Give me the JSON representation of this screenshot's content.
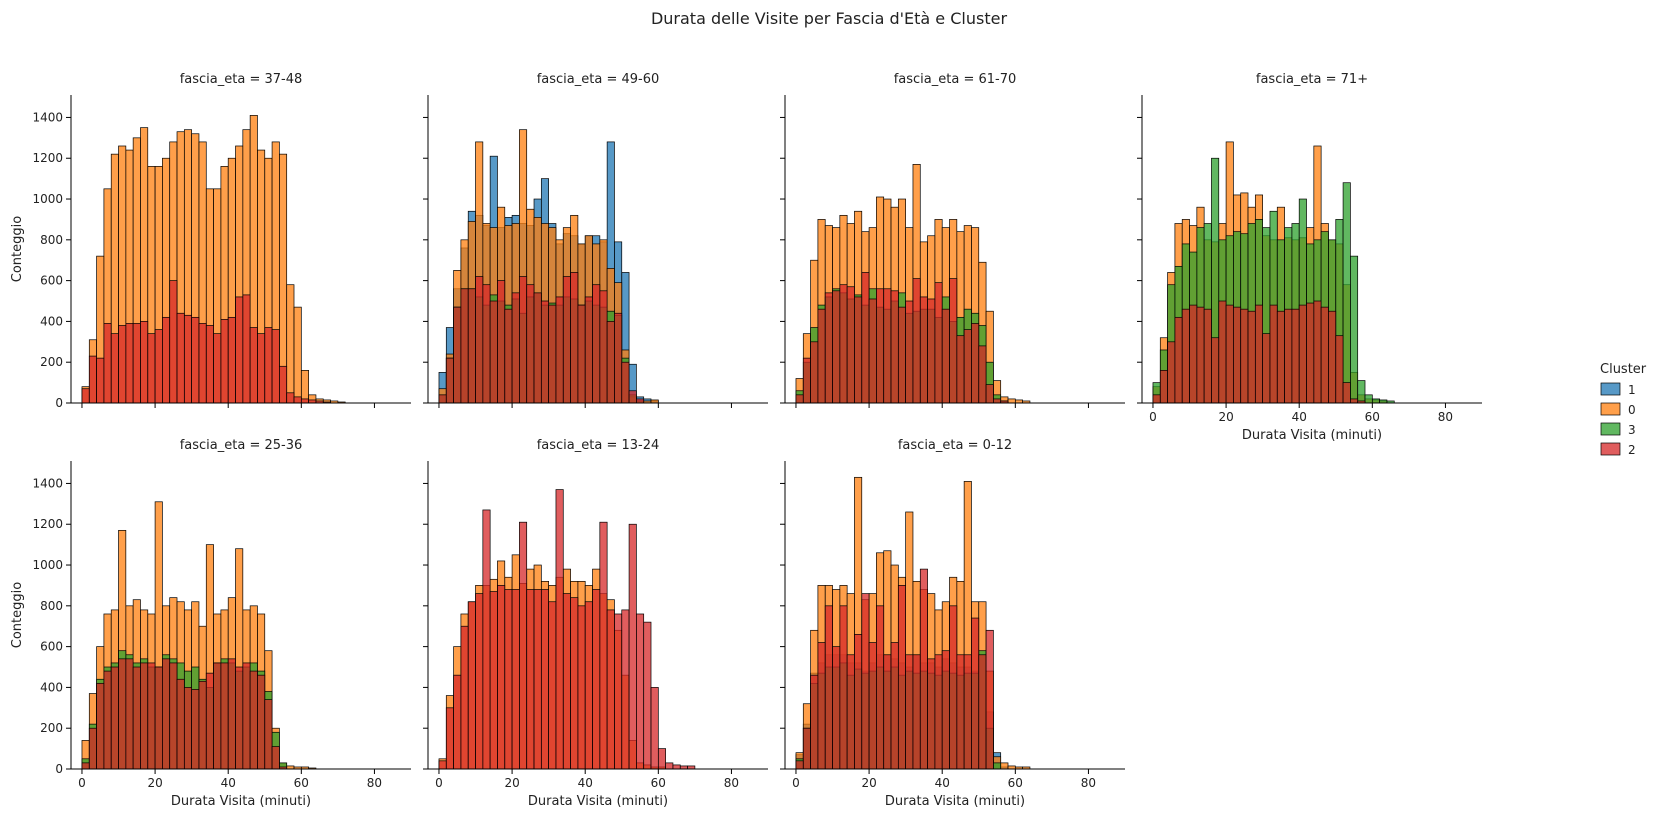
{
  "title": "Durata delle Visite per Fascia d'Età e Cluster",
  "legend": {
    "title": "Cluster",
    "placement": "right-center",
    "entries": [
      {
        "label": "1",
        "color": "#1f77b4"
      },
      {
        "label": "0",
        "color": "#ff7f0e"
      },
      {
        "label": "3",
        "color": "#2ca02c"
      },
      {
        "label": "2",
        "color": "#d62728"
      }
    ]
  },
  "chart_data": {
    "type": "bar",
    "kind": "faceted-overlaid-histogram",
    "xlabel": "Durata Visita (minuti)",
    "ylabel": "Conteggio",
    "xlim": [
      -3,
      90
    ],
    "ylim": [
      0,
      1510
    ],
    "xticks": [
      0,
      20,
      40,
      60,
      80
    ],
    "yticks": [
      0,
      200,
      400,
      600,
      800,
      1000,
      1200,
      1400
    ],
    "bin_width": 2,
    "bin_start": 0,
    "grid": false,
    "panels": [
      {
        "title": "fascia_eta = 37-48",
        "series": [
          {
            "name": "0",
            "values": [
              80,
              310,
              720,
              1050,
              1220,
              1260,
              1240,
              1300,
              1350,
              1160,
              1160,
              1200,
              1280,
              1330,
              1340,
              1320,
              1280,
              1050,
              1050,
              1160,
              1200,
              1260,
              1340,
              1410,
              1240,
              1200,
              1280,
              1220,
              580,
              470,
              160,
              40,
              20,
              15,
              10,
              5
            ]
          },
          {
            "name": "2",
            "values": [
              70,
              230,
              220,
              390,
              340,
              380,
              390,
              390,
              400,
              340,
              360,
              420,
              600,
              440,
              430,
              420,
              390,
              380,
              340,
              410,
              420,
              520,
              530,
              370,
              340,
              370,
              360,
              180,
              50,
              30,
              20,
              15,
              10,
              5
            ]
          }
        ]
      },
      {
        "title": "fascia_eta = 49-60",
        "series": [
          {
            "name": "1",
            "values": [
              150,
              370,
              560,
              760,
              940,
              920,
              870,
              1210,
              860,
              910,
              920,
              880,
              870,
              1000,
              1100,
              880,
              780,
              830,
              820,
              780,
              820,
              820,
              790,
              1280,
              790,
              640,
              190,
              30,
              20,
              10
            ]
          },
          {
            "name": "0",
            "values": [
              70,
              240,
              650,
              800,
              890,
              1280,
              880,
              860,
              960,
              870,
              880,
              1340,
              950,
              910,
              880,
              860,
              800,
              860,
              920,
              780,
              820,
              780,
              800,
              660,
              590,
              260,
              30,
              10,
              10,
              15
            ]
          },
          {
            "name": "3",
            "values": [
              40,
              220,
              470,
              560,
              560,
              520,
              480,
              530,
              500,
              480,
              510,
              440,
              520,
              540,
              480,
              490,
              480,
              520,
              510,
              480,
              500,
              480,
              470,
              450,
              430,
              220,
              40,
              10
            ]
          },
          {
            "name": "2",
            "values": [
              40,
              220,
              470,
              560,
              560,
              620,
              580,
              500,
              600,
              460,
              540,
              620,
              580,
              540,
              500,
              480,
              520,
              620,
              640,
              480,
              520,
              580,
              550,
              400,
              440,
              200,
              60,
              20
            ]
          }
        ]
      },
      {
        "title": "fascia_eta = 61-70",
        "series": [
          {
            "name": "0",
            "values": [
              120,
              340,
              700,
              900,
              870,
              860,
              920,
              880,
              940,
              840,
              860,
              1010,
              1000,
              960,
              1000,
              860,
              1170,
              790,
              820,
              900,
              860,
              900,
              840,
              870,
              860,
              690,
              450,
              110,
              30,
              20,
              15,
              10
            ]
          },
          {
            "name": "3",
            "values": [
              60,
              200,
              370,
              480,
              520,
              560,
              540,
              510,
              530,
              480,
              560,
              470,
              460,
              500,
              540,
              440,
              450,
              460,
              460,
              420,
              520,
              400,
              420,
              460,
              440,
              380,
              200,
              40,
              10
            ]
          },
          {
            "name": "2",
            "values": [
              40,
              220,
              300,
              460,
              540,
              550,
              580,
              570,
              520,
              640,
              510,
              560,
              560,
              550,
              470,
              500,
              610,
              520,
              510,
              590,
              460,
              610,
              330,
              360,
              390,
              280,
              90,
              20,
              10
            ]
          }
        ]
      },
      {
        "title": "fascia_eta = 71+",
        "series": [
          {
            "name": "0",
            "values": [
              80,
              320,
              640,
              880,
              900,
              870,
              960,
              800,
              790,
              880,
              1280,
              1020,
              1030,
              960,
              1020,
              820,
              800,
              960,
              810,
              800,
              810,
              860,
              1260,
              880,
              800,
              780,
              580,
              150,
              40,
              20,
              15,
              10
            ]
          },
          {
            "name": "3",
            "values": [
              100,
              260,
              580,
              670,
              780,
              740,
              860,
              880,
              1200,
              800,
              820,
              840,
              830,
              880,
              900,
              860,
              940,
              800,
              860,
              880,
              1000,
              780,
              800,
              840,
              800,
              900,
              1080,
              720,
              110,
              40,
              20,
              15,
              10
            ]
          },
          {
            "name": "2",
            "values": [
              40,
              160,
              300,
              420,
              460,
              480,
              470,
              460,
              320,
              500,
              480,
              470,
              460,
              450,
              480,
              340,
              480,
              450,
              460,
              460,
              480,
              490,
              500,
              470,
              450,
              330,
              100,
              20,
              10
            ]
          }
        ]
      },
      {
        "title": "fascia_eta = 25-36",
        "series": [
          {
            "name": "0",
            "values": [
              140,
              370,
              600,
              760,
              780,
              1170,
              800,
              830,
              780,
              760,
              1310,
              800,
              840,
              820,
              780,
              820,
              700,
              1100,
              760,
              780,
              840,
              1080,
              780,
              800,
              760,
              580,
              200,
              30,
              15,
              10,
              10,
              5
            ]
          },
          {
            "name": "3",
            "values": [
              50,
              220,
              440,
              500,
              520,
              580,
              560,
              520,
              540,
              500,
              500,
              560,
              540,
              520,
              480,
              500,
              440,
              400,
              520,
              540,
              520,
              480,
              500,
              520,
              480,
              380,
              180,
              30
            ]
          },
          {
            "name": "2",
            "values": [
              30,
              200,
              420,
              480,
              500,
              540,
              540,
              500,
              520,
              520,
              500,
              540,
              520,
              440,
              400,
              390,
              430,
              470,
              520,
              520,
              540,
              500,
              520,
              480,
              460,
              340,
              110,
              10
            ]
          }
        ]
      },
      {
        "title": "fascia_eta = 13-24",
        "series": [
          {
            "name": "0",
            "values": [
              50,
              360,
              600,
              760,
              820,
              900,
              900,
              930,
              1020,
              940,
              1050,
              910,
              980,
              1000,
              920,
              900,
              940,
              980,
              920,
              920,
              900,
              980,
              860,
              830,
              680,
              460,
              140,
              30,
              20,
              10,
              10
            ]
          },
          {
            "name": "2",
            "values": [
              40,
              300,
              460,
              700,
              820,
              860,
              1270,
              870,
              900,
              880,
              880,
              1210,
              880,
              880,
              880,
              820,
              1370,
              860,
              840,
              800,
              820,
              880,
              1210,
              780,
              760,
              780,
              1200,
              760,
              720,
              400,
              100,
              30,
              20,
              15,
              15
            ]
          }
        ]
      },
      {
        "title": "fascia_eta = 0-12",
        "series": [
          {
            "name": "1",
            "values": [
              70,
              220,
              470,
              520,
              560,
              560,
              560,
              520,
              520,
              480,
              520,
              560,
              560,
              540,
              520,
              500,
              560,
              520,
              520,
              500,
              540,
              520,
              500,
              500,
              480,
              560,
              280,
              80,
              10
            ]
          },
          {
            "name": "0",
            "values": [
              80,
              320,
              680,
              900,
              900,
              880,
              900,
              860,
              1430,
              830,
              860,
              1060,
              1070,
              1000,
              940,
              1260,
              920,
              880,
              860,
              780,
              820,
              940,
              920,
              1410,
              820,
              820,
              480,
              60,
              30,
              15,
              10,
              10
            ]
          },
          {
            "name": "3",
            "values": [
              50,
              200,
              420,
              470,
              500,
              500,
              520,
              460,
              490,
              470,
              480,
              500,
              480,
              500,
              460,
              480,
              470,
              480,
              470,
              460,
              480,
              470,
              460,
              470,
              470,
              580,
              200,
              30
            ]
          },
          {
            "name": "2",
            "values": [
              40,
              200,
              460,
              620,
              800,
              600,
              800,
              560,
              660,
              860,
              620,
              800,
              560,
              620,
              900,
              560,
              560,
              980,
              540,
              560,
              580,
              800,
              560,
              560,
              740,
              560,
              680
            ]
          }
        ]
      }
    ]
  }
}
